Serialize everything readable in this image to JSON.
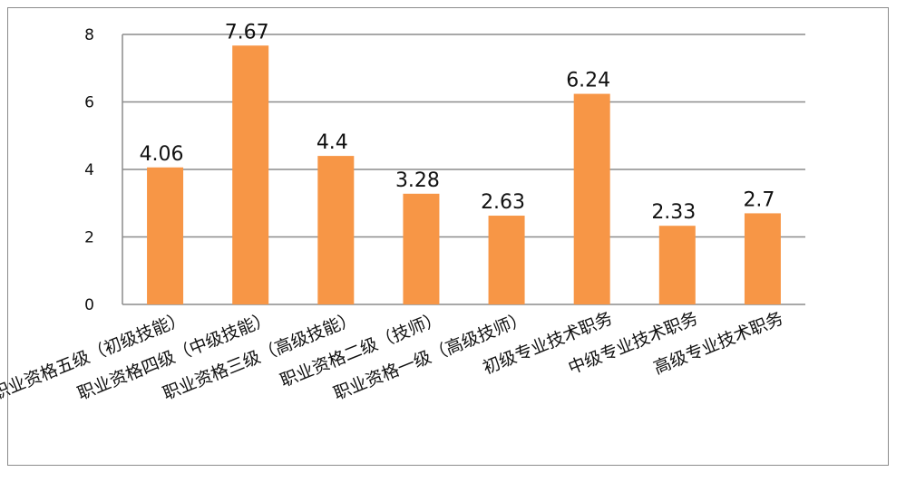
{
  "chart_data": {
    "type": "bar",
    "title": "",
    "xlabel": "",
    "ylabel": "",
    "categories": [
      "职业资格五级（初级技能）",
      "职业资格四级（中级技能）",
      "职业资格三级（高级技能）",
      "职业资格二级（技师）",
      "职业资格一级（高级技师）",
      "初级专业技术职务",
      "中级专业技术职务",
      "高级专业技术职务"
    ],
    "values": [
      4.06,
      7.67,
      4.4,
      3.28,
      2.63,
      6.24,
      2.33,
      2.7
    ],
    "data_labels": [
      "4.06",
      "7.67",
      "4.4",
      "3.28",
      "2.63",
      "6.24",
      "2.33",
      "2.7"
    ],
    "ylim": [
      0,
      8
    ],
    "yticks": [
      "0",
      "2",
      "4",
      "6",
      "8"
    ],
    "grid": true,
    "legend": "none",
    "bar_color": "#F79646",
    "grid_color": "#8c8c8c"
  }
}
